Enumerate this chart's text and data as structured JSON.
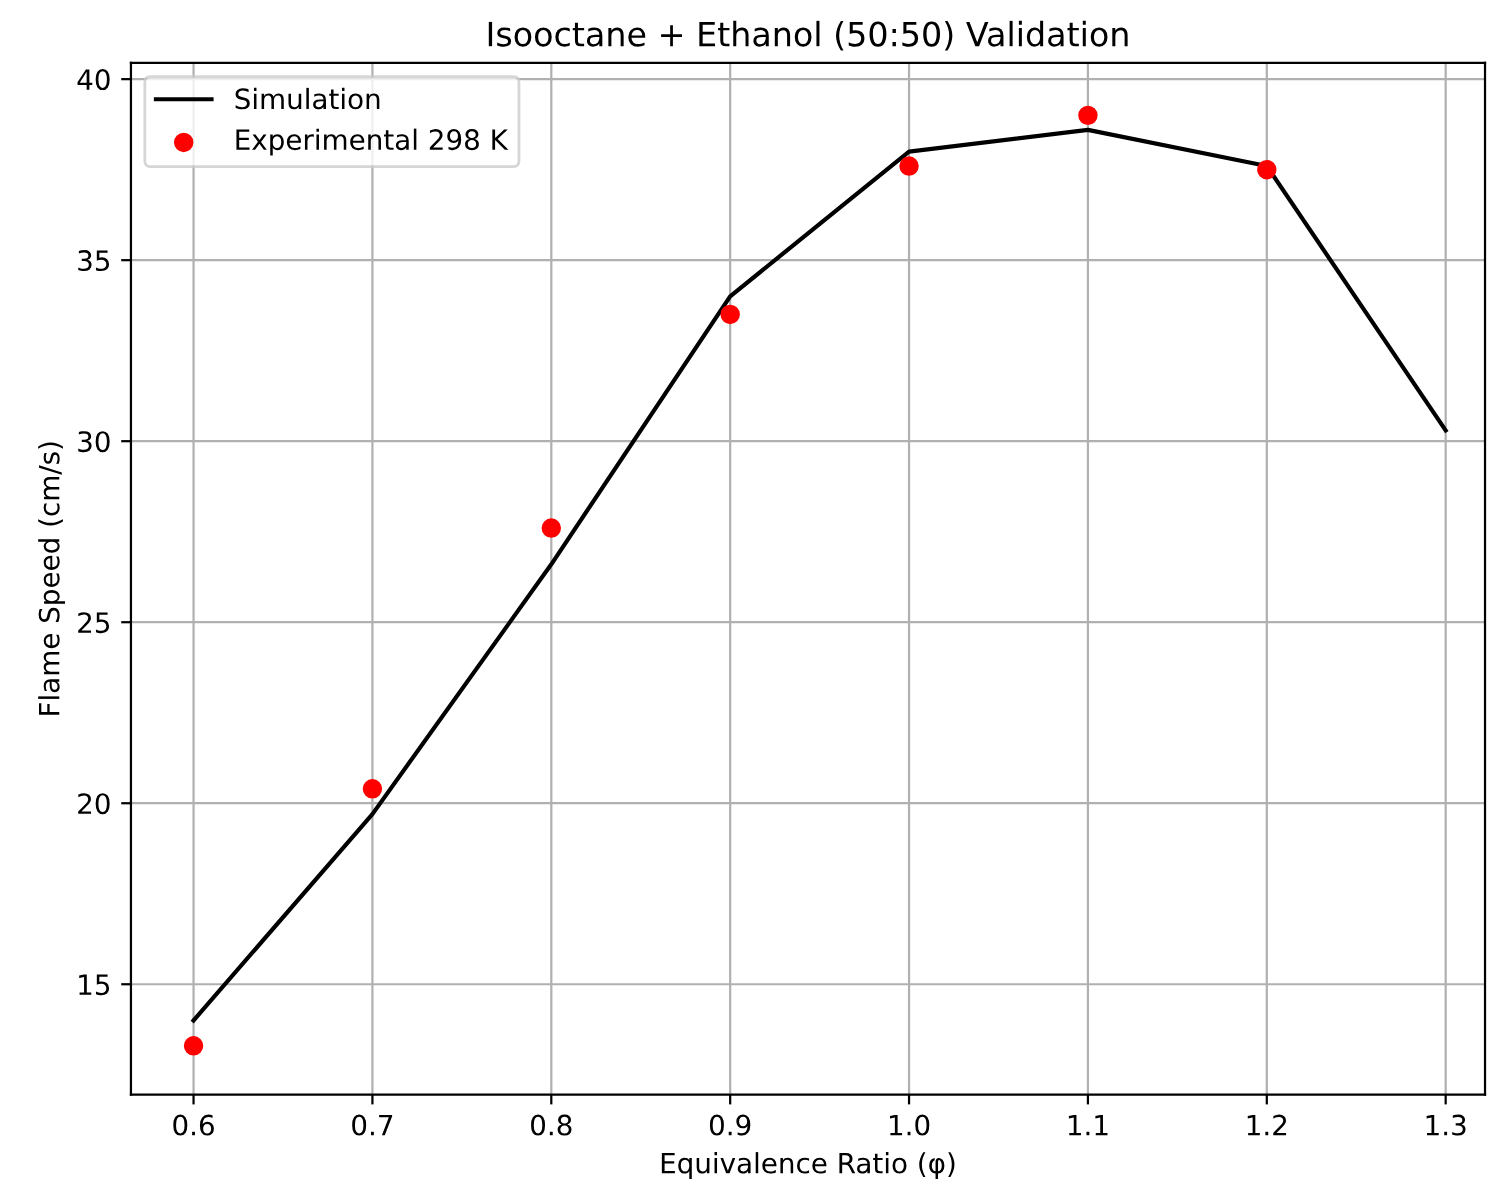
{
  "chart_data": {
    "type": "line",
    "title": "Isooctane + Ethanol (50:50) Validation",
    "xlabel": "Equivalence Ratio (φ)",
    "ylabel": "Flame Speed (cm/s)",
    "series": [
      {
        "name": "Simulation",
        "marker": "none",
        "color": "#000000",
        "x": [
          0.6,
          0.7,
          0.8,
          0.9,
          1.0,
          1.1,
          1.2,
          1.3
        ],
        "values": [
          14.0,
          19.7,
          26.6,
          34.0,
          38.0,
          38.6,
          37.6,
          30.3
        ]
      },
      {
        "name": "Experimental 298 K",
        "type": "scatter",
        "marker": "circle",
        "color": "#ff0000",
        "x": [
          0.6,
          0.7,
          0.8,
          0.9,
          1.0,
          1.1,
          1.2
        ],
        "values": [
          13.3,
          20.4,
          27.6,
          33.5,
          37.6,
          39.0,
          37.5
        ]
      }
    ],
    "xlim": [
      0.565,
      1.322
    ],
    "ylim": [
      11.95,
      40.45
    ],
    "xticks": [
      0.6,
      0.7,
      0.8,
      0.9,
      {
        "value": 1.0,
        "label": "1.0"
      },
      1.1,
      1.2,
      1.3
    ],
    "yticks": [
      15,
      20,
      25,
      30,
      35,
      40
    ],
    "grid": true,
    "legend": "top left",
    "line_style": "solid"
  }
}
